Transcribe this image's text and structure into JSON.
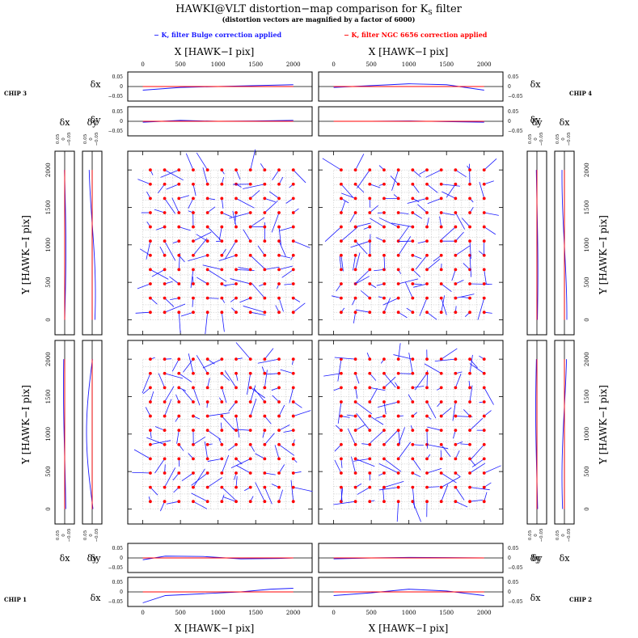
{
  "title": "HAWKI@VLT distortion−map comparison for K",
  "title_sub": "S",
  "title_tail": " filter",
  "subtitle": "(distortion vectors are magnified by a factor of 6000)",
  "legend": {
    "bulge": "− K, filter Bulge correction applied",
    "ngc": "− K, filter NGC 6656 correction applied"
  },
  "axes": {
    "x_label": "X [HAWK−I pix]",
    "y_label": "Y [HAWK−I pix]",
    "dx_label": "δx",
    "dy_label": "δy",
    "x_ticks_top": [
      "0",
      "500",
      "1000",
      "1500",
      "2000"
    ],
    "x_ticks_bottom": [
      "0",
      "500",
      "1000",
      "1500",
      "2000"
    ],
    "y_ticks": [
      "0",
      "500",
      "1000",
      "1500",
      "2000"
    ],
    "small_ticks": [
      "0.05",
      "0",
      "−0.05"
    ]
  },
  "chips": {
    "chip1": "CHIP 1",
    "chip2": "CHIP 2",
    "chip3": "CHIP 3",
    "chip4": "CHIP 4"
  },
  "colors": {
    "bulge": "#1a1aff",
    "ngc": "#ff0000",
    "grid": "#b0b0b0"
  },
  "chart_data": {
    "type": "scatter",
    "description_of_content": "vector field",
    "xlim": [
      -200,
      2250
    ],
    "ylim": [
      -200,
      2250
    ],
    "magnification": 6000,
    "grid_spacing": 200,
    "profiles_dx_top": {
      "chip3": [
        [
          0,
          -0.02
        ],
        [
          500,
          -0.005
        ],
        [
          1000,
          0.0
        ],
        [
          1500,
          0.005
        ],
        [
          2000,
          0.01
        ]
      ],
      "chip4": [
        [
          0,
          -0.005
        ],
        [
          500,
          0.005
        ],
        [
          1000,
          0.015
        ],
        [
          1500,
          0.01
        ],
        [
          2000,
          -0.02
        ]
      ]
    },
    "profiles_dy_top": {
      "chip3": [
        [
          0,
          -0.005
        ],
        [
          500,
          0.005
        ],
        [
          1000,
          0.0
        ],
        [
          1500,
          0.002
        ],
        [
          2000,
          0.005
        ]
      ],
      "chip4": [
        [
          0,
          0.0
        ],
        [
          500,
          0.0
        ],
        [
          1000,
          0.002
        ],
        [
          1500,
          -0.002
        ],
        [
          2000,
          -0.005
        ]
      ]
    },
    "profiles_dy_bottom": {
      "chip1": [
        [
          0,
          -0.01
        ],
        [
          300,
          0.01
        ],
        [
          800,
          0.008
        ],
        [
          1300,
          -0.005
        ],
        [
          1800,
          -0.003
        ],
        [
          2000,
          0.0
        ]
      ],
      "chip2": [
        [
          0,
          -0.005
        ],
        [
          500,
          0.0
        ],
        [
          1000,
          0.003
        ],
        [
          1500,
          0.002
        ],
        [
          2000,
          0.0
        ]
      ]
    },
    "profiles_dx_bottom": {
      "chip1": [
        [
          0,
          -0.06
        ],
        [
          300,
          -0.02
        ],
        [
          800,
          -0.01
        ],
        [
          1300,
          0.0
        ],
        [
          1700,
          0.015
        ],
        [
          2000,
          0.02
        ]
      ],
      "chip2": [
        [
          0,
          -0.02
        ],
        [
          500,
          -0.005
        ],
        [
          1000,
          0.015
        ],
        [
          1500,
          0.005
        ],
        [
          2000,
          -0.02
        ]
      ]
    }
  }
}
